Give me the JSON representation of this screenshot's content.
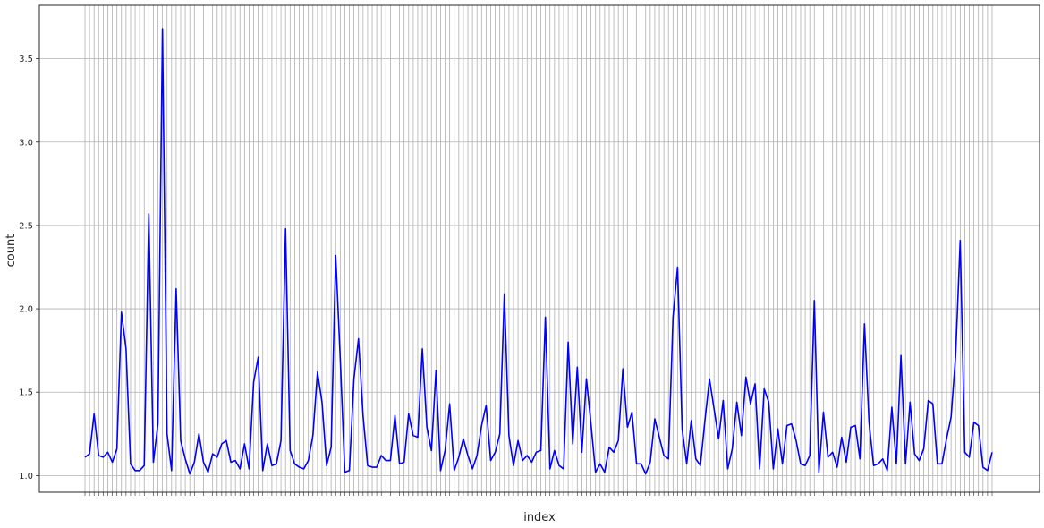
{
  "chart_data": {
    "type": "line",
    "title": "",
    "xlabel": "index",
    "ylabel": "count",
    "ylim": [
      0.9,
      3.82
    ],
    "yticks": [
      1.0,
      1.5,
      2.0,
      2.5,
      3.0,
      3.5
    ],
    "ytick_labels": [
      "1.0",
      "1.5",
      "2.0",
      "2.5",
      "3.0",
      "3.5"
    ],
    "grid": true,
    "line_color": "#0000ff",
    "grid_color": "#b0b0b0",
    "values": [
      1.11,
      1.13,
      1.37,
      1.12,
      1.11,
      1.14,
      1.08,
      1.16,
      1.98,
      1.76,
      1.07,
      1.03,
      1.03,
      1.06,
      2.57,
      1.08,
      1.31,
      3.68,
      1.25,
      1.03,
      2.12,
      1.21,
      1.1,
      1.01,
      1.08,
      1.25,
      1.08,
      1.02,
      1.13,
      1.11,
      1.19,
      1.21,
      1.08,
      1.09,
      1.04,
      1.19,
      1.04,
      1.56,
      1.71,
      1.03,
      1.19,
      1.06,
      1.07,
      1.21,
      2.48,
      1.15,
      1.07,
      1.05,
      1.04,
      1.09,
      1.24,
      1.62,
      1.44,
      1.06,
      1.17,
      2.32,
      1.7,
      1.02,
      1.03,
      1.58,
      1.82,
      1.36,
      1.06,
      1.05,
      1.05,
      1.12,
      1.09,
      1.09,
      1.36,
      1.07,
      1.08,
      1.37,
      1.24,
      1.23,
      1.76,
      1.29,
      1.15,
      1.63,
      1.03,
      1.15,
      1.43,
      1.03,
      1.11,
      1.22,
      1.12,
      1.04,
      1.12,
      1.3,
      1.42,
      1.09,
      1.14,
      1.25,
      2.09,
      1.24,
      1.06,
      1.21,
      1.09,
      1.12,
      1.08,
      1.14,
      1.15,
      1.95,
      1.04,
      1.15,
      1.06,
      1.04,
      1.8,
      1.19,
      1.65,
      1.14,
      1.58,
      1.31,
      1.02,
      1.07,
      1.02,
      1.17,
      1.14,
      1.21,
      1.64,
      1.29,
      1.38,
      1.07,
      1.07,
      1.01,
      1.08,
      1.34,
      1.23,
      1.12,
      1.1,
      1.95,
      2.25,
      1.28,
      1.07,
      1.33,
      1.1,
      1.06,
      1.33,
      1.58,
      1.4,
      1.22,
      1.45,
      1.04,
      1.16,
      1.44,
      1.24,
      1.59,
      1.43,
      1.55,
      1.04,
      1.52,
      1.44,
      1.04,
      1.28,
      1.07,
      1.3,
      1.31,
      1.21,
      1.07,
      1.06,
      1.12,
      2.05,
      1.02,
      1.38,
      1.11,
      1.14,
      1.05,
      1.23,
      1.08,
      1.29,
      1.3,
      1.1,
      1.91,
      1.32,
      1.06,
      1.07,
      1.1,
      1.03,
      1.41,
      1.07,
      1.72,
      1.07,
      1.44,
      1.13,
      1.09,
      1.16,
      1.45,
      1.43,
      1.07,
      1.07,
      1.22,
      1.35,
      1.72,
      2.41,
      1.14,
      1.11,
      1.32,
      1.3,
      1.05,
      1.03,
      1.14
    ]
  }
}
